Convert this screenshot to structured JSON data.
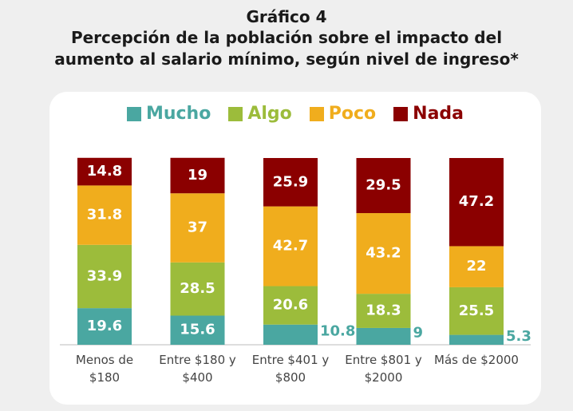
{
  "chart_data": {
    "type": "stacked_bar_percent",
    "title": "Gráfico 4",
    "subtitle": "Percepción de la población sobre el impacto del aumento al salario mínimo, según nivel de ingreso*",
    "categories": [
      "Menos de $180",
      "Entre $180 y $400",
      "Entre $401 y $800",
      "Entre $801 y $2000",
      "Más de $2000"
    ],
    "series": [
      {
        "name": "Mucho",
        "color": "#4aa7a1",
        "values": [
          19.6,
          15.6,
          10.8,
          9,
          5.3
        ]
      },
      {
        "name": "Algo",
        "color": "#9cbc3b",
        "values": [
          33.9,
          28.5,
          20.6,
          18.3,
          25.5
        ]
      },
      {
        "name": "Poco",
        "color": "#f0ad1d",
        "values": [
          31.8,
          37,
          42.7,
          43.2,
          22
        ]
      },
      {
        "name": "Nada",
        "color": "#8b0000",
        "values": [
          14.8,
          19,
          25.9,
          29.5,
          47.2
        ]
      }
    ],
    "ylim": [
      0,
      100
    ]
  }
}
